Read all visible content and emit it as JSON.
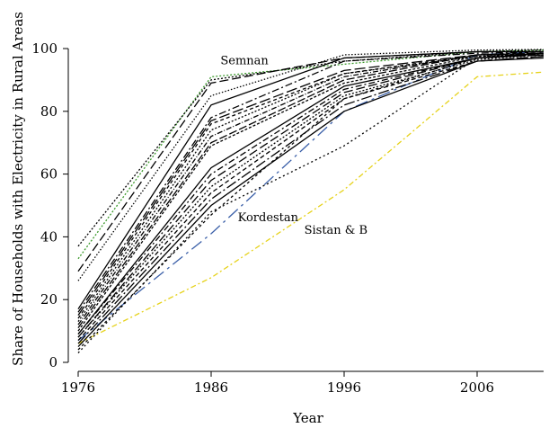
{
  "chart_data": {
    "type": "line",
    "xlabel": "Year",
    "ylabel": "Share of Households with Electricity in Rural Areas",
    "xlim": [
      1976,
      2011
    ],
    "ylim": [
      0,
      100
    ],
    "xticks": [
      1976,
      1986,
      1996,
      2006
    ],
    "yticks": [
      0,
      20,
      40,
      60,
      80,
      100
    ],
    "grid": false,
    "x": [
      1976,
      1986,
      1996,
      2006,
      2011
    ],
    "annotations": [
      {
        "text": "Semnan",
        "x": 1986.7,
        "y": 95
      },
      {
        "text": "Kordestan",
        "x": 1988,
        "y": 45
      },
      {
        "text": "Sistan & B",
        "x": 1993,
        "y": 41
      }
    ],
    "series": [
      {
        "values": [
          33,
          91,
          95,
          99,
          99.5
        ],
        "color": "#3c9a2c",
        "dash": "2 2"
      },
      {
        "values": [
          7,
          41,
          80,
          98,
          99
        ],
        "color": "#3a5fa8",
        "dash": "14 5 3 5"
      },
      {
        "values": [
          6,
          27,
          55,
          91,
          92.5
        ],
        "color": "#e6d21a",
        "dash": "6 3 2 3"
      },
      {
        "values": [
          3,
          48,
          69,
          97,
          98.5
        ],
        "color": "#000000",
        "dash": "2 3"
      },
      {
        "values": [
          37,
          90,
          96,
          99,
          99.5
        ],
        "color": "#000000",
        "dash": "2 2"
      },
      {
        "values": [
          29,
          89,
          97,
          99,
          99
        ],
        "color": "#000000",
        "dash": "10 4"
      },
      {
        "values": [
          26,
          85,
          98,
          99.5,
          99.7
        ],
        "color": "#000000",
        "dash": "1.5 2"
      },
      {
        "values": [
          17,
          82,
          97,
          99,
          99
        ],
        "color": "#000000",
        "dash": ""
      },
      {
        "values": [
          16,
          78,
          96,
          98.5,
          99
        ],
        "color": "#000000",
        "dash": "8 3 2 3"
      },
      {
        "values": [
          15,
          77,
          93,
          98,
          98.5
        ],
        "color": "#000000",
        "dash": "12 4"
      },
      {
        "values": [
          14,
          76,
          92,
          98,
          99
        ],
        "color": "#000000",
        "dash": "4 3"
      },
      {
        "values": [
          13,
          74,
          92,
          97.5,
          98.5
        ],
        "color": "#000000",
        "dash": "2 2"
      },
      {
        "values": [
          12,
          72,
          91,
          98,
          98.5
        ],
        "color": "#000000",
        "dash": "6 2 1 2"
      },
      {
        "values": [
          11,
          70,
          90,
          98,
          98
        ],
        "color": "#000000",
        "dash": "9 3"
      },
      {
        "values": [
          10,
          69,
          89,
          97.5,
          98
        ],
        "color": "#000000",
        "dash": "3 2"
      },
      {
        "values": [
          9,
          62,
          88,
          97,
          98.5
        ],
        "color": "#000000",
        "dash": ""
      },
      {
        "values": [
          9,
          60,
          87,
          97,
          98
        ],
        "color": "#000000",
        "dash": "7 3 2 3"
      },
      {
        "values": [
          8,
          58,
          86,
          97,
          98
        ],
        "color": "#000000",
        "dash": "10 4"
      },
      {
        "values": [
          8,
          56,
          85,
          96.5,
          98
        ],
        "color": "#000000",
        "dash": "2 2"
      },
      {
        "values": [
          7,
          54,
          84,
          96,
          97.5
        ],
        "color": "#000000",
        "dash": "5 3"
      },
      {
        "values": [
          6,
          52,
          82,
          96,
          97.5
        ],
        "color": "#000000",
        "dash": "12 3 2 3"
      },
      {
        "values": [
          5,
          50,
          80,
          96,
          97
        ],
        "color": "#000000",
        "dash": ""
      },
      {
        "values": [
          4,
          47,
          84,
          97,
          98
        ],
        "color": "#000000",
        "dash": "3 3"
      }
    ]
  }
}
